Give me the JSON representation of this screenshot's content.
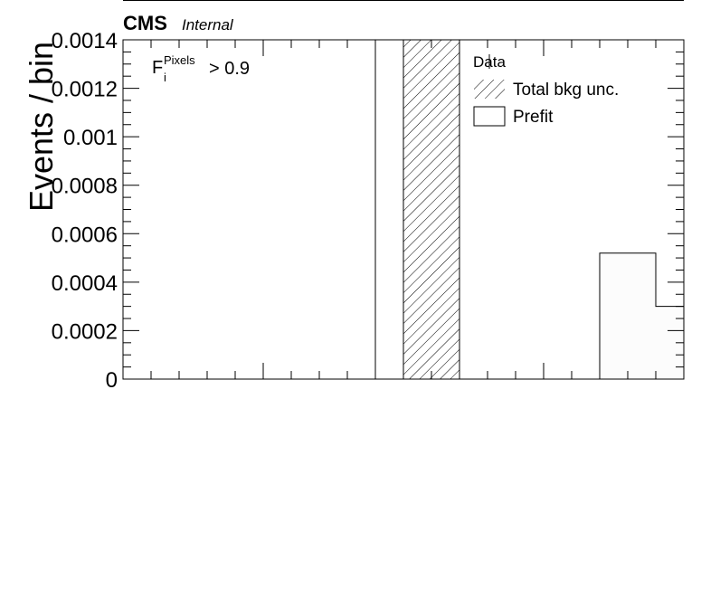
{
  "chart_data": {
    "type": "bar",
    "title": "",
    "experiment": "CMS",
    "status_label": "Internal",
    "ylabel": "Events / bin",
    "xlabel": "",
    "ylim": [
      0,
      0.0014
    ],
    "yticks": [
      {
        "value": 0,
        "label": "0"
      },
      {
        "value": 0.0002,
        "label": "0.0002"
      },
      {
        "value": 0.0004,
        "label": "0.0004"
      },
      {
        "value": 0.0006,
        "label": "0.0006"
      },
      {
        "value": 0.0008,
        "label": "0.0008"
      },
      {
        "value": 0.001,
        "label": "0.001"
      },
      {
        "value": 0.0012,
        "label": "0.0012"
      },
      {
        "value": 0.0014,
        "label": "0.0014"
      }
    ],
    "xlim": [
      0,
      20
    ],
    "selection_label": {
      "base": "F",
      "sub": "i",
      "sup": "Pixels",
      "cut": "> 0.9"
    },
    "series": [
      {
        "name": "Prefit",
        "kind": "histogram",
        "bins": [
          [
            17,
            19,
            0.00052
          ],
          [
            19,
            20,
            0.0003
          ]
        ]
      },
      {
        "name": "Total bkg unc.",
        "kind": "hatched-band",
        "bins": [
          [
            10,
            12,
            0.0014
          ]
        ]
      }
    ],
    "vertical_lines": [
      9
    ],
    "legend": {
      "position": "top-right",
      "entries": [
        {
          "label": "Data",
          "style": "marker"
        },
        {
          "label": "Total bkg unc.",
          "style": "hatch"
        },
        {
          "label": "Prefit",
          "style": "box"
        }
      ]
    },
    "grid": false
  }
}
